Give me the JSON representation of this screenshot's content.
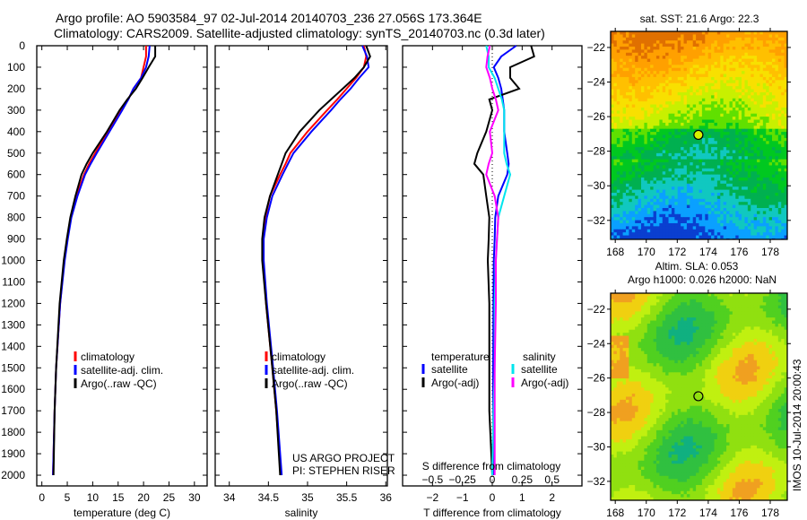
{
  "title_line1": "Argo profile: AO 5903584_97 02-Jul-2014 20140703_236 27.056S 173.364E",
  "title_line2": "Climatology: CARS2009. Satellite-adjusted climatology: synTS_20140703.nc (0.3d later)",
  "colors": {
    "climatology": "#ff0000",
    "satellite": "#0000ff",
    "argo": "#000000",
    "s_satellite": "#00e5ee",
    "s_argo": "#ff00ff"
  },
  "depth_ticks": [
    0,
    100,
    200,
    300,
    400,
    500,
    600,
    700,
    800,
    900,
    1000,
    1100,
    1200,
    1300,
    1400,
    1500,
    1600,
    1700,
    1800,
    1900,
    2000
  ],
  "chart_data": [
    {
      "type": "line",
      "panel": "temperature",
      "xlabel": "temperature (deg C)",
      "xlim": [
        -1,
        32.5
      ],
      "ylim": [
        2050,
        0
      ],
      "xticks": [
        0,
        5,
        10,
        15,
        20,
        25,
        30
      ],
      "depth": [
        0,
        50,
        100,
        150,
        200,
        250,
        300,
        400,
        500,
        550,
        600,
        700,
        800,
        900,
        1000,
        1200,
        1500,
        1700,
        2000
      ],
      "legend": [
        "climatology",
        "satellite-adj. clim.",
        "Argo(..raw -QC)"
      ],
      "series": [
        {
          "name": "climatology",
          "values": [
            20.5,
            20.5,
            20,
            19.5,
            18,
            17,
            15.5,
            13,
            10.5,
            9.3,
            8.3,
            6.8,
            5.7,
            5,
            4.4,
            3.6,
            2.8,
            2.5,
            2.2
          ]
        },
        {
          "name": "satellite-adj. clim.",
          "values": [
            21.2,
            21,
            20.5,
            19.5,
            18,
            17,
            15.8,
            13.3,
            10.8,
            9.6,
            8.5,
            7,
            5.8,
            5.1,
            4.5,
            3.6,
            2.8,
            2.5,
            2.2
          ]
        },
        {
          "name": "Argo(..raw -QC)",
          "values": [
            22.3,
            22.3,
            21,
            19.8,
            18.5,
            16.8,
            15.3,
            12.8,
            10,
            8.8,
            7.8,
            6.6,
            5.6,
            4.9,
            4.3,
            3.5,
            2.8,
            2.5,
            2.3
          ]
        }
      ]
    },
    {
      "type": "line",
      "panel": "salinity",
      "xlabel": "salinity",
      "xlim": [
        33.82,
        36.02
      ],
      "ylim": [
        2050,
        0
      ],
      "xticks": [
        34,
        34.5,
        35,
        35.5,
        36
      ],
      "depth": [
        0,
        50,
        100,
        150,
        200,
        250,
        300,
        400,
        500,
        550,
        600,
        700,
        800,
        900,
        1000,
        1200,
        1500,
        1700,
        2000
      ],
      "legend": [
        "climatology",
        "satellite-adj. clim.",
        "Argo(..raw -QC)"
      ],
      "annotation": [
        "US ARGO PROJECT",
        "PI: STEPHEN RISER"
      ],
      "series": [
        {
          "name": "climatology",
          "values": [
            35.72,
            35.75,
            35.72,
            35.62,
            35.5,
            35.38,
            35.25,
            35.0,
            34.78,
            34.72,
            34.65,
            34.52,
            34.46,
            34.43,
            34.43,
            34.47,
            34.55,
            34.6,
            34.66
          ]
        },
        {
          "name": "satellite-adj. clim.",
          "values": [
            35.7,
            35.76,
            35.78,
            35.66,
            35.55,
            35.42,
            35.3,
            35.05,
            34.82,
            34.75,
            34.68,
            34.55,
            34.48,
            34.44,
            34.44,
            34.48,
            34.56,
            34.61,
            34.67
          ]
        },
        {
          "name": "Argo(..raw -QC)",
          "values": [
            35.75,
            35.8,
            35.72,
            35.6,
            35.45,
            35.3,
            35.15,
            34.9,
            34.72,
            34.67,
            34.62,
            34.52,
            34.45,
            34.42,
            34.42,
            34.47,
            34.55,
            34.6,
            34.65
          ]
        }
      ]
    },
    {
      "type": "line",
      "panel": "difference",
      "xlabel": "T difference from climatology",
      "x2label": "S difference from climatology",
      "xlim": [
        -3,
        3
      ],
      "x2lim": [
        -0.5,
        0.5
      ],
      "ylim": [
        2050,
        0
      ],
      "xticks": [
        -2,
        -1,
        0,
        1,
        2
      ],
      "x2ticks": [
        -0.5,
        -0.25,
        0,
        0.25,
        0.5
      ],
      "depth": [
        0,
        50,
        100,
        150,
        200,
        250,
        300,
        400,
        500,
        550,
        600,
        700,
        800,
        900,
        1000,
        1200,
        1500,
        1700,
        2000
      ],
      "legend_titles": [
        "temperature",
        "salinity"
      ],
      "legend": [
        "satellite",
        "Argo(-adj)",
        "satellite",
        "Argo(-adj)"
      ],
      "series": [
        {
          "name": "T satellite",
          "axis": "T",
          "values": [
            0.8,
            0.3,
            0.05,
            0.2,
            0.3,
            0.35,
            0.4,
            0.4,
            0.5,
            0.55,
            0.5,
            0.2,
            0.1,
            0.08,
            0.05,
            0.04,
            0.03,
            0.03,
            0.03
          ]
        },
        {
          "name": "T Argo(-adj)",
          "axis": "T",
          "values": [
            1.3,
            1.4,
            0.6,
            0.6,
            0.9,
            -0.1,
            0,
            -0.2,
            -0.5,
            -0.6,
            -0.3,
            -0.2,
            -0.1,
            -0.12,
            -0.15,
            -0.1,
            -0.1,
            -0.1,
            0
          ]
        },
        {
          "name": "S satellite",
          "axis": "S",
          "values": [
            -0.05,
            -0.03,
            -0.03,
            0.02,
            0.05,
            0.08,
            0.1,
            0.1,
            0.1,
            0.12,
            0.15,
            0.1,
            0.05,
            0.04,
            0.03,
            0.02,
            0.02,
            0.01,
            0
          ]
        },
        {
          "name": "S Argo(-adj)",
          "axis": "S",
          "values": [
            -0.02,
            -0.04,
            -0.05,
            -0.02,
            0,
            0.03,
            0.05,
            -0.02,
            0,
            -0.03,
            -0.05,
            0.02,
            0.05,
            0.04,
            0.03,
            0.03,
            0.02,
            0.02,
            0.02
          ]
        }
      ]
    }
  ],
  "maps": [
    {
      "title": "sat. SST: 21.6 Argo: 22.3",
      "lon_ticks": [
        168,
        170,
        172,
        174,
        176,
        178
      ],
      "lat_ticks": [
        -22,
        -24,
        -26,
        -28,
        -30,
        -32
      ],
      "argo_lon": 173.364,
      "argo_lat": -27.056
    },
    {
      "title": "Altim. SLA: 0.053",
      "subtitle": "Argo h1000: 0.026 h2000: NaN",
      "lon_ticks": [
        168,
        170,
        172,
        174,
        176,
        178
      ],
      "lat_ticks": [
        -22,
        -24,
        -26,
        -28,
        -30,
        -32
      ],
      "argo_lon": 173.364,
      "argo_lat": -27.056
    }
  ],
  "imos_stamp": "IMOS 10-Jul-2014 20:00:43"
}
